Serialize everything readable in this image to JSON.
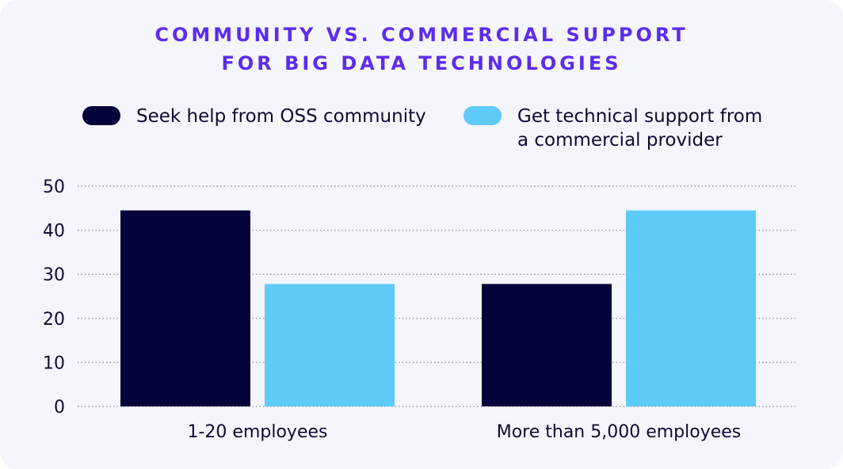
{
  "colors": {
    "background": "#f5f6fb",
    "title": "#5b2cf0",
    "text": "#0d0b33",
    "grid": "#9a9aa8"
  },
  "chart_data": {
    "type": "bar",
    "title_lines": [
      "COMMUNITY VS. COMMERCIAL SUPPORT",
      "FOR BIG DATA TECHNOLOGIES"
    ],
    "categories": [
      "1-20 employees",
      "More than 5,000 employees"
    ],
    "series": [
      {
        "name": "Seek help from OSS community",
        "color": "#04033a",
        "values": [
          44.5,
          27.8
        ]
      },
      {
        "name": "Get technical support from a commercial provider",
        "color": "#5ecaf8",
        "values": [
          27.8,
          44.5
        ]
      }
    ],
    "yticks": [
      "0",
      "10",
      "20",
      "30",
      "40",
      "50"
    ],
    "ylim": [
      0,
      50
    ],
    "grid": true,
    "legend_position": "top",
    "xlabel": "",
    "ylabel": ""
  }
}
